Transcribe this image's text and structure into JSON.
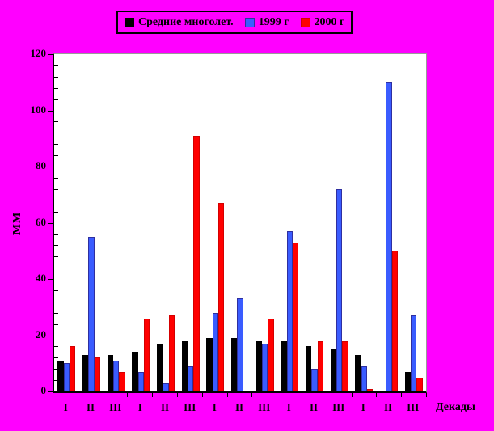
{
  "background_color": "#FF00FF",
  "plot_background_color": "#FFFFFF",
  "legend": {
    "items": [
      {
        "label": "Средние многолет.",
        "color": "#000000",
        "border_color": "#000000"
      },
      {
        "label": "1999 г",
        "color": "#3A5CFF",
        "border_color": "#2F2FA0"
      },
      {
        "label": "2000 г",
        "color": "#FF0000",
        "border_color": "#D40000"
      }
    ]
  },
  "y_axis": {
    "title": "мм",
    "tick_labels": [
      "0",
      "20",
      "40",
      "60",
      "80",
      "100",
      "120"
    ],
    "min": 0,
    "max": 120,
    "major_step": 20,
    "minor_step": 4
  },
  "x_axis": {
    "title": "Декады",
    "tick_labels": [
      "I",
      "II",
      "III",
      "I",
      "II",
      "III",
      "I",
      "II",
      "III",
      "I",
      "II",
      "III",
      "I",
      "II",
      "III"
    ]
  },
  "chart_data": {
    "type": "bar",
    "title": "",
    "xlabel": "Декады",
    "ylabel": "мм",
    "ylim": [
      0,
      120
    ],
    "grid": false,
    "legend_position": "top-center",
    "categories": [
      "I",
      "II",
      "III",
      "I",
      "II",
      "III",
      "I",
      "II",
      "III",
      "I",
      "II",
      "III",
      "I",
      "II",
      "III"
    ],
    "series": [
      {
        "name": "Средние многолет.",
        "color": "#000000",
        "border_color": "#000000",
        "values": [
          11,
          13,
          13,
          14,
          17,
          18,
          19,
          19,
          18,
          18,
          16,
          15,
          13,
          0,
          7
        ]
      },
      {
        "name": "1999 г",
        "color": "#3A5CFF",
        "border_color": "#2F2FA0",
        "values": [
          10,
          55,
          11,
          7,
          3,
          9,
          28,
          33,
          17,
          57,
          8,
          72,
          9,
          110,
          27
        ]
      },
      {
        "name": "2000 г",
        "color": "#FF0000",
        "border_color": "#D40000",
        "values": [
          16,
          12,
          7,
          26,
          27,
          91,
          67,
          0,
          26,
          53,
          18,
          18,
          1,
          50,
          5
        ]
      }
    ]
  }
}
